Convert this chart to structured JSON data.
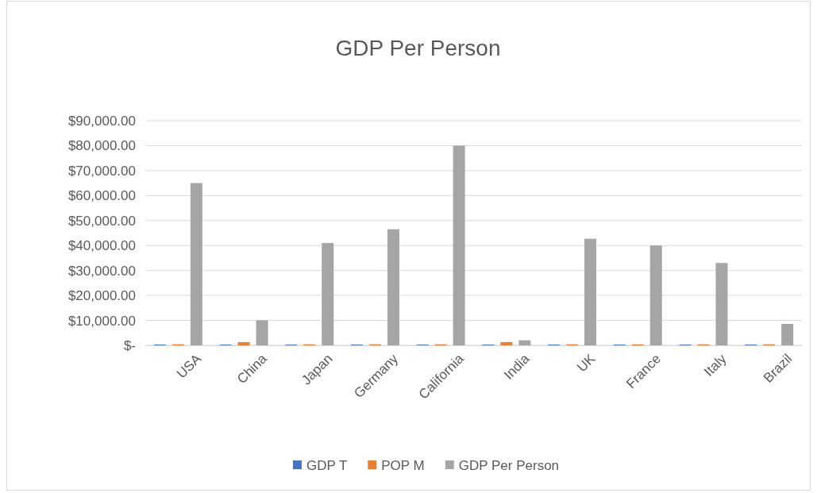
{
  "chart_data": {
    "type": "bar",
    "title": "GDP Per Person",
    "categories": [
      "USA",
      "China",
      "Japan",
      "Germany",
      "California",
      "India",
      "UK",
      "France",
      "Italy",
      "Brazil"
    ],
    "series": [
      {
        "name": "GDP T",
        "color": "#4472c4",
        "values": [
          300,
          300,
          300,
          300,
          300,
          300,
          300,
          300,
          300,
          300
        ]
      },
      {
        "name": "POP M",
        "color": "#ed7d31",
        "values": [
          400,
          1300,
          400,
          400,
          400,
          1300,
          400,
          400,
          400,
          400
        ]
      },
      {
        "name": "GDP Per Person",
        "color": "#a5a5a5",
        "values": [
          65000,
          10000,
          41000,
          46500,
          80000,
          2000,
          42700,
          40000,
          33000,
          8600
        ]
      }
    ],
    "ylim": [
      0,
      90000
    ],
    "yticks": [
      {
        "value": 0,
        "label": "$-"
      },
      {
        "value": 10000,
        "label": "$10,000.00"
      },
      {
        "value": 20000,
        "label": "$20,000.00"
      },
      {
        "value": 30000,
        "label": "$30,000.00"
      },
      {
        "value": 40000,
        "label": "$40,000.00"
      },
      {
        "value": 50000,
        "label": "$50,000.00"
      },
      {
        "value": 60000,
        "label": "$60,000.00"
      },
      {
        "value": 70000,
        "label": "$70,000.00"
      },
      {
        "value": 80000,
        "label": "$80,000.00"
      },
      {
        "value": 90000,
        "label": "$90,000.00"
      }
    ],
    "grid": "y",
    "legend": "bottom"
  }
}
